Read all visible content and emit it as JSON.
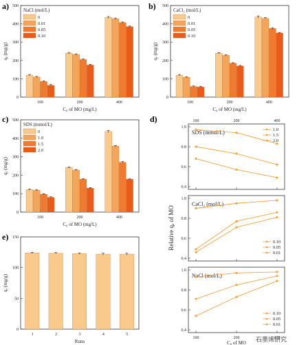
{
  "watermark": "石墨烯研究",
  "panel_labels": [
    "a)",
    "b)",
    "c)",
    "d)",
    "e)"
  ],
  "colors": {
    "bar": [
      "#FAC98C",
      "#F5A55A",
      "#F07A30",
      "#EA5A1A"
    ],
    "line": "#F7A23A",
    "axis": "#333333"
  },
  "chart_data": [
    {
      "id": "a",
      "type": "bar",
      "categories": [
        "100",
        "200",
        "400"
      ],
      "legend_title": "NaCl (mol/L)",
      "series": [
        {
          "name": "0",
          "values": [
            120,
            240,
            435
          ],
          "errors": [
            4,
            4,
            5
          ]
        },
        {
          "name": "0.01",
          "values": [
            110,
            233,
            428
          ],
          "errors": [
            3,
            3,
            4
          ]
        },
        {
          "name": "0.05",
          "values": [
            85,
            205,
            407
          ],
          "errors": [
            3,
            3,
            3
          ]
        },
        {
          "name": "0.10",
          "values": [
            64,
            175,
            385
          ],
          "errors": [
            5,
            4,
            3
          ]
        }
      ],
      "ylim": [
        0,
        500
      ],
      "yticks": [
        0,
        100,
        200,
        300,
        400,
        500
      ],
      "ylabel": "qₑ (mg/g)",
      "xlabel": "C₀ of MO (mg/L)"
    },
    {
      "id": "b",
      "type": "bar",
      "categories": [
        "100",
        "200",
        "400"
      ],
      "legend_title": "CaCl₂ (mol/L)",
      "series": [
        {
          "name": "0",
          "values": [
            120,
            240,
            437
          ],
          "errors": [
            4,
            3,
            6
          ]
        },
        {
          "name": "0.01",
          "values": [
            108,
            228,
            430
          ],
          "errors": [
            3,
            3,
            4
          ]
        },
        {
          "name": "0.05",
          "values": [
            58,
            185,
            375
          ],
          "errors": [
            3,
            3,
            4
          ]
        },
        {
          "name": "0.10",
          "values": [
            55,
            170,
            350
          ],
          "errors": [
            3,
            3,
            3
          ]
        }
      ],
      "ylim": [
        0,
        500
      ],
      "yticks": [
        0,
        100,
        200,
        300,
        400,
        500
      ],
      "ylabel": "qₑ (mg/g)",
      "xlabel": "C₀ of MO (mg/L)"
    },
    {
      "id": "c",
      "type": "bar",
      "categories": [
        "100",
        "200",
        "400"
      ],
      "legend_title": "SDS (mmol/L)",
      "series": [
        {
          "name": "0",
          "values": [
            122,
            242,
            437
          ],
          "errors": [
            3,
            3,
            6
          ]
        },
        {
          "name": "1.0",
          "values": [
            118,
            228,
            358
          ],
          "errors": [
            3,
            3,
            3
          ]
        },
        {
          "name": "1.5",
          "values": [
            97,
            178,
            270
          ],
          "errors": [
            3,
            3,
            4
          ]
        },
        {
          "name": "2.0",
          "values": [
            80,
            130,
            178
          ],
          "errors": [
            3,
            3,
            3
          ]
        }
      ],
      "ylim": [
        0,
        500
      ],
      "yticks": [
        0,
        100,
        200,
        300,
        400,
        500
      ],
      "ylabel": "qₑ (mg/g)",
      "xlabel": "C₀ of MO (mg/L)"
    },
    {
      "id": "d",
      "type": "line",
      "x": [
        100,
        200,
        400
      ],
      "xlabel": "C₀ of MO",
      "ylabel": "Relative qₑ of MO",
      "subplots": [
        {
          "title": "SDS (mmol/L)",
          "legend_position": "top-right",
          "ylim": [
            0.4,
            1.0
          ],
          "yticks": [
            0.4,
            0.6,
            0.8,
            1.0
          ],
          "series": [
            {
              "name": "1.0",
              "values": [
                0.97,
                0.94,
                0.83
              ]
            },
            {
              "name": "1.5",
              "values": [
                0.8,
                0.73,
                0.62
              ]
            },
            {
              "name": "2.0",
              "values": [
                0.68,
                0.57,
                0.49
              ]
            }
          ]
        },
        {
          "title": "CaCl₂ (mol/L)",
          "legend_position": "bottom-right",
          "ylim": [
            0.4,
            1.0
          ],
          "yticks": [
            0.4,
            0.6,
            0.8,
            1.0
          ],
          "series": [
            {
              "name": "0.10",
              "values": [
                0.46,
                0.71,
                0.81
              ]
            },
            {
              "name": "0.05",
              "values": [
                0.49,
                0.77,
                0.86
              ]
            },
            {
              "name": "0.01",
              "values": [
                0.9,
                0.95,
                0.98
              ]
            }
          ]
        },
        {
          "title": "NaCl (mol/L)",
          "legend_position": "bottom-right",
          "ylim": [
            0.4,
            1.0
          ],
          "yticks": [
            0.4,
            0.6,
            0.8,
            1.0
          ],
          "series": [
            {
              "name": "0.10",
              "values": [
                0.54,
                0.73,
                0.89
              ]
            },
            {
              "name": "0.05",
              "values": [
                0.71,
                0.85,
                0.94
              ]
            },
            {
              "name": "0.01",
              "values": [
                0.93,
                0.97,
                0.98
              ]
            }
          ]
        }
      ]
    },
    {
      "id": "e",
      "type": "bar",
      "categories": [
        "1",
        "2",
        "3",
        "4",
        "5"
      ],
      "series": [
        {
          "name": "",
          "values": [
            124,
            123.5,
            123,
            122,
            122
          ],
          "errors": [
            1,
            1,
            1,
            1.5,
            1.5
          ]
        }
      ],
      "ylim": [
        0,
        150
      ],
      "yticks": [
        0,
        50,
        100,
        150
      ],
      "ylabel": "qₑ (mg/g)",
      "xlabel": "Runs"
    }
  ]
}
